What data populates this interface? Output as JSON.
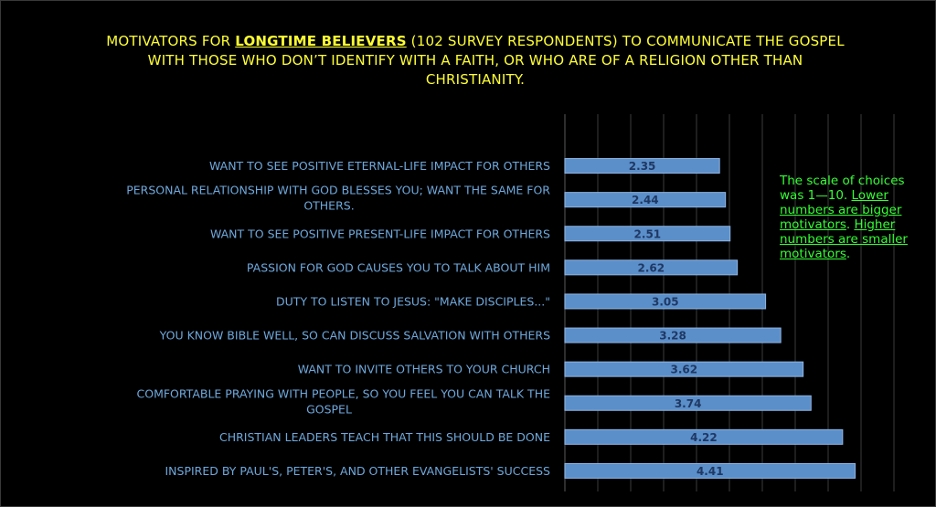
{
  "title": {
    "prefix": "MOTIVATORS FOR ",
    "highlight": "LONGTIME BELIEVERS",
    "suffix": " (102 SURVEY RESPONDENTS) TO COMMUNICATE THE GOSPEL WITH THOSE WHO DON’T IDENTIFY WITH A FAITH, OR WHO ARE OF A RELIGION OTHER THAN CHRISTIANITY."
  },
  "note": {
    "part1": "The scale of choices was 1—10. ",
    "part2": "Lower numbers are bigger motivators",
    "part3": ". ",
    "part4": "Higher numbers are smaller motivators",
    "part5": "."
  },
  "colors": {
    "background": "#000000",
    "title": "#ffff33",
    "bar_fill": "#5b8fc9",
    "bar_stroke": "#8fb4e3",
    "category_label": "#6fa8dc",
    "value_label": "#1f3864",
    "note": "#33ff33",
    "grid": "#3c3c3c"
  },
  "chart_data": {
    "type": "bar",
    "orientation": "horizontal",
    "categories": [
      [
        "WANT TO SEE POSITIVE ETERNAL-LIFE IMPACT FOR OTHERS"
      ],
      [
        "PERSONAL RELATIONSHIP WITH GOD BLESSES YOU; WANT THE SAME FOR",
        "OTHERS."
      ],
      [
        "WANT TO SEE POSITIVE PRESENT-LIFE IMPACT FOR OTHERS"
      ],
      [
        "PASSION FOR GOD CAUSES YOU TO TALK ABOUT HIM"
      ],
      [
        "DUTY TO LISTEN TO JESUS: \"MAKE DISCIPLES...\""
      ],
      [
        "YOU KNOW BIBLE WELL, SO CAN DISCUSS SALVATION WITH OTHERS"
      ],
      [
        "WANT TO INVITE OTHERS TO YOUR CHURCH"
      ],
      [
        "COMFORTABLE PRAYING WITH PEOPLE, SO YOU FEEL YOU CAN TALK THE",
        "GOSPEL"
      ],
      [
        "CHRISTIAN LEADERS TEACH THAT THIS SHOULD BE DONE"
      ],
      [
        "INSPIRED BY PAUL'S, PETER'S, AND OTHER EVANGELISTS' SUCCESS"
      ]
    ],
    "values": [
      2.35,
      2.44,
      2.51,
      2.62,
      3.05,
      3.28,
      3.62,
      3.74,
      4.22,
      4.41
    ],
    "xlim": [
      0,
      5
    ],
    "grid": true,
    "data_labels": true
  }
}
